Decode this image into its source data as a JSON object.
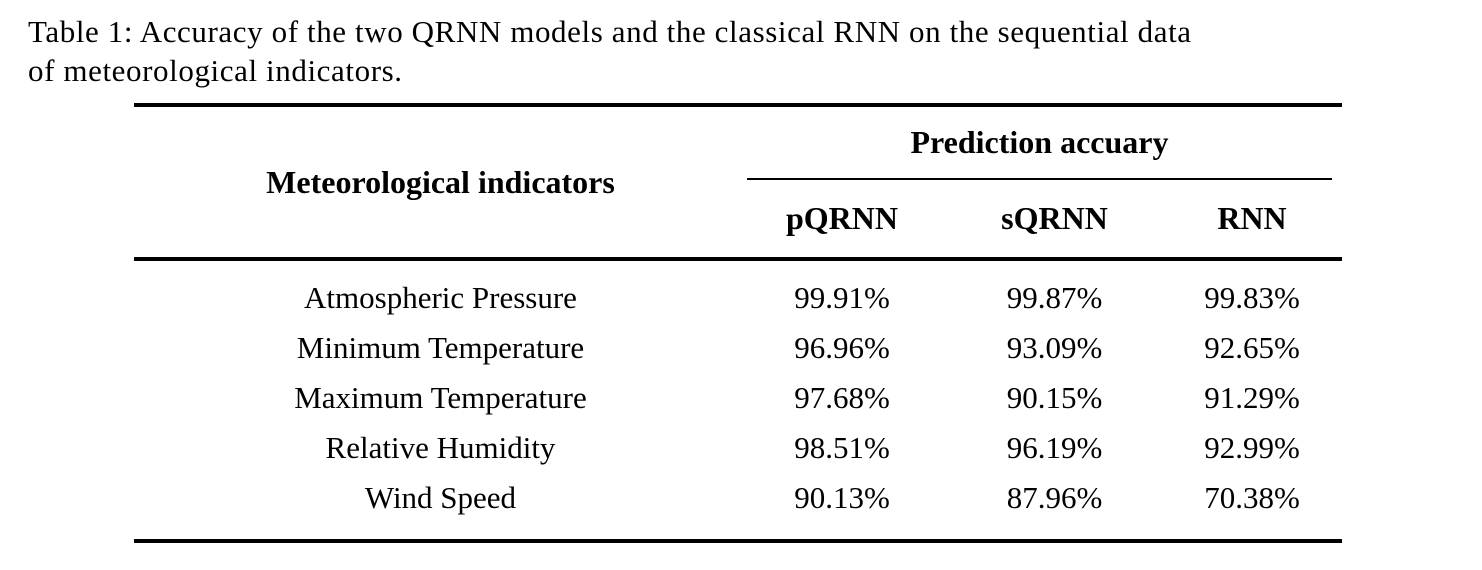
{
  "caption": {
    "full_text": "Table 1: Accuracy of the two QRNN models and the classical RNN on the sequential data of meteorological indicators.",
    "line1": "Table 1: Accuracy of the two QRNN models and the classical RNN on the sequential data",
    "line2": "of meteorological indicators."
  },
  "table": {
    "row_header_title": "Meteorological indicators",
    "group_header": "Prediction accuary",
    "columns": [
      "pQRNN",
      "sQRNN",
      "RNN"
    ],
    "rows": [
      {
        "indicator": "Atmospheric Pressure",
        "values": [
          "99.91%",
          "99.87%",
          "99.83%"
        ]
      },
      {
        "indicator": "Minimum Temperature",
        "values": [
          "96.96%",
          "93.09%",
          "92.65%"
        ]
      },
      {
        "indicator": "Maximum Temperature",
        "values": [
          "97.68%",
          "90.15%",
          "91.29%"
        ]
      },
      {
        "indicator": "Relative Humidity",
        "values": [
          "98.51%",
          "96.19%",
          "92.99%"
        ]
      },
      {
        "indicator": "Wind Speed",
        "values": [
          "90.13%",
          "87.96%",
          "70.38%"
        ]
      }
    ]
  },
  "colors": {
    "background": "#ffffff",
    "text": "#000000",
    "rule": "#000000"
  }
}
